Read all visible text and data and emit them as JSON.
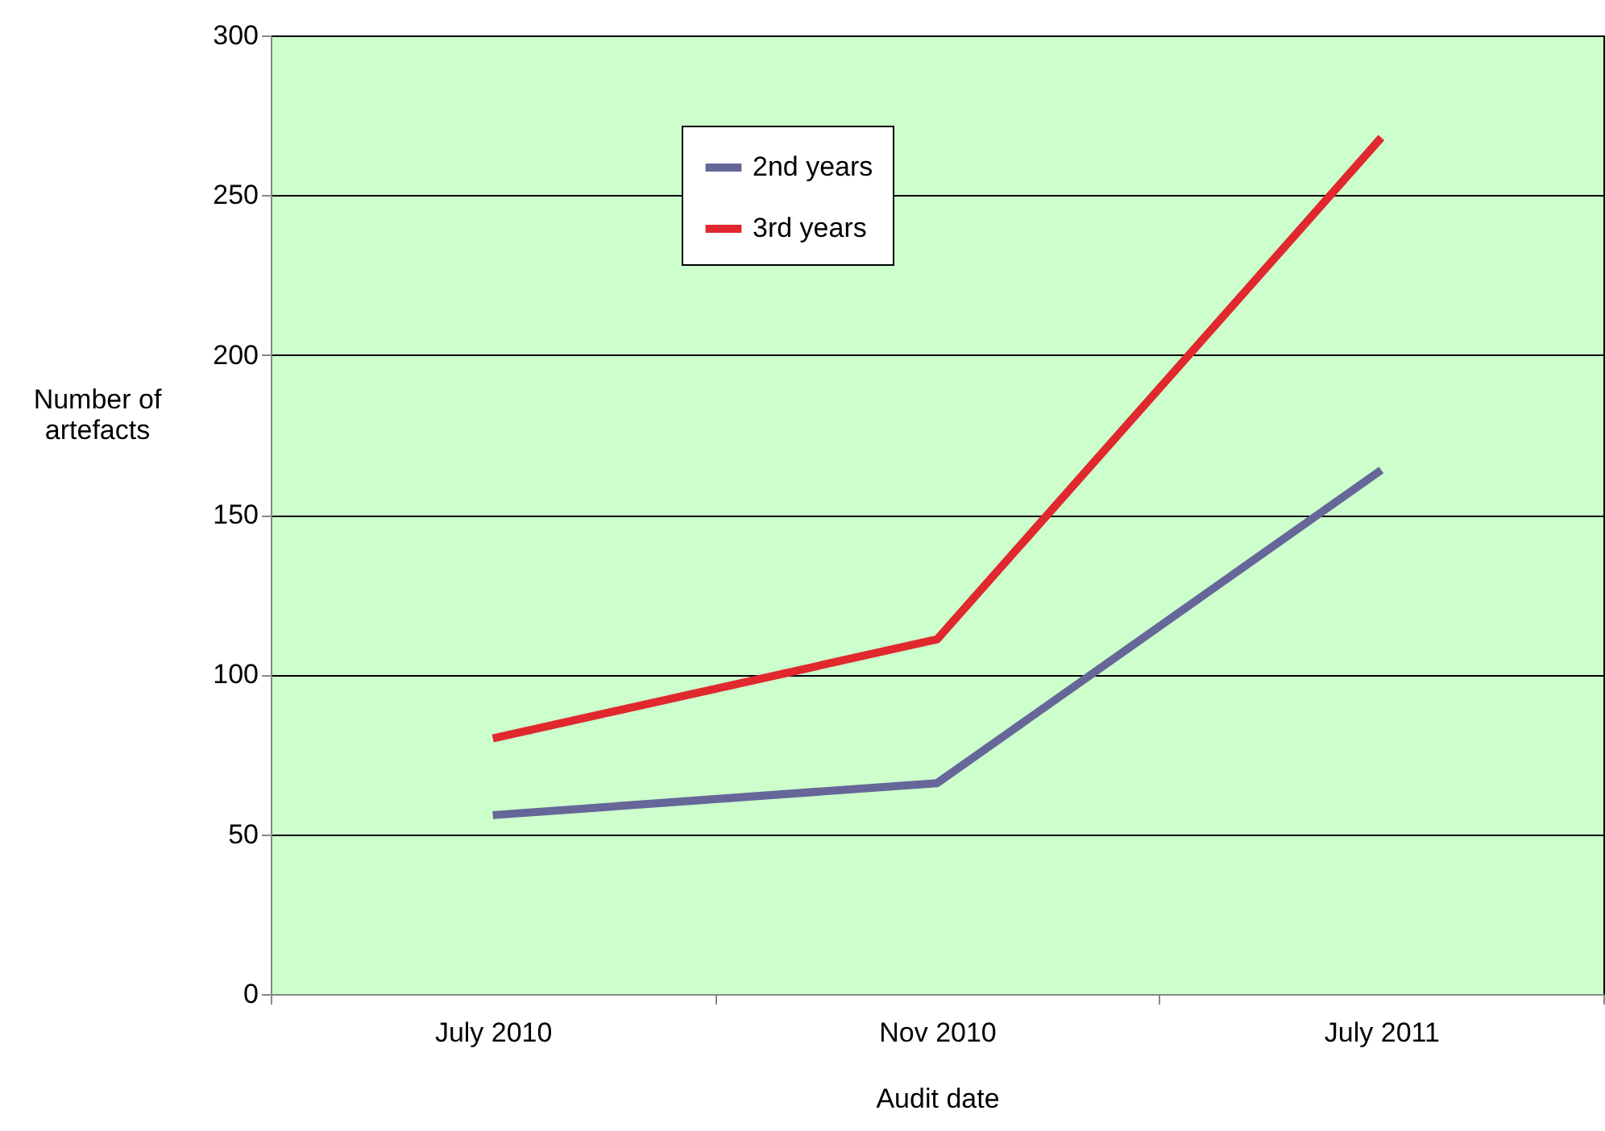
{
  "chart_data": {
    "type": "line",
    "xlabel": "Audit date",
    "ylabel": "Number of artefacts",
    "categories": [
      "July 2010",
      "Nov 2010",
      "July 2011"
    ],
    "series": [
      {
        "name": "2nd years",
        "color": "#666699",
        "values": [
          56,
          66,
          164
        ]
      },
      {
        "name": "3rd years",
        "color": "#e0282e",
        "values": [
          80,
          111,
          268
        ]
      }
    ],
    "ylim": [
      0,
      300
    ],
    "yticks": [
      0,
      50,
      100,
      150,
      200,
      250,
      300
    ],
    "grid": "y",
    "legend": "top",
    "marker": "none",
    "line_style": "solid"
  }
}
